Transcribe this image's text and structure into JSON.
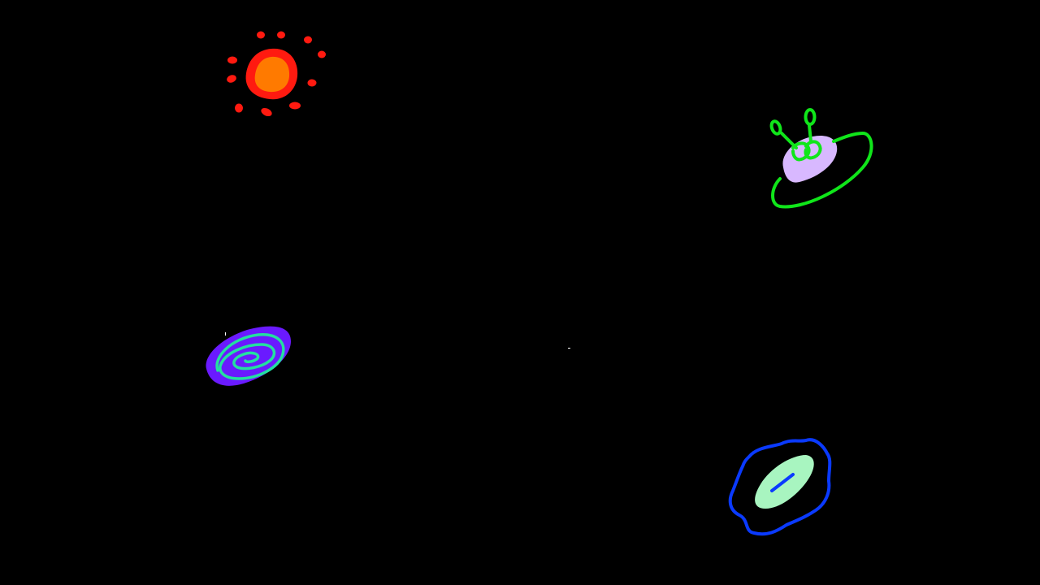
{
  "scene": {
    "background_color": "#000000",
    "objects": [
      {
        "name": "sun",
        "icon": "sun-icon",
        "colors": {
          "core": "#ff7a00",
          "rim": "#ff1a10",
          "rays": "#ff1a10"
        }
      },
      {
        "name": "ufo",
        "icon": "ufo-alien-icon",
        "colors": {
          "body": "#d8b8ff",
          "outline": "#10e61a"
        }
      },
      {
        "name": "spiral-galaxy",
        "icon": "spiral-galaxy-icon",
        "colors": {
          "disc": "#6a1aff",
          "arms": "#23e0a0"
        }
      },
      {
        "name": "amoeba-cell",
        "icon": "amoeba-cell-icon",
        "colors": {
          "membrane": "#0a3aff",
          "cytoplasm": "#a8f5c0",
          "nucleus": "#0a3aff"
        }
      }
    ],
    "stars_color": "#ffffff"
  }
}
